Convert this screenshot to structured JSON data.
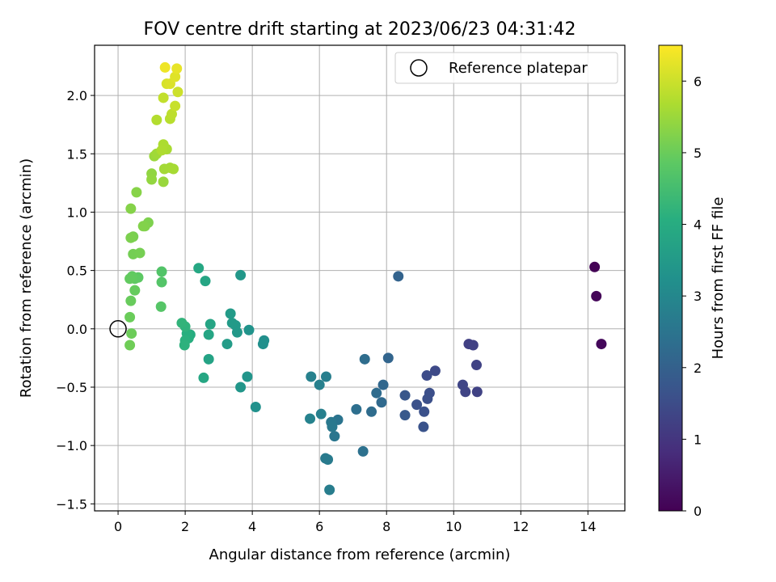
{
  "chart_data": {
    "type": "scatter",
    "title": "FOV centre drift starting at 2023/06/23 04:31:42",
    "xlabel": "Angular distance from reference (arcmin)",
    "ylabel": "Rotation from reference (arcmin)",
    "xlim": [
      -0.7,
      15.1
    ],
    "ylim": [
      -1.56,
      2.43
    ],
    "xticks": [
      0,
      2,
      4,
      6,
      8,
      10,
      12,
      14
    ],
    "yticks": [
      -1.5,
      -1.0,
      -0.5,
      0.0,
      0.5,
      1.0,
      1.5,
      2.0
    ],
    "xtick_labels": [
      "0",
      "2",
      "4",
      "6",
      "8",
      "10",
      "12",
      "14"
    ],
    "ytick_labels": [
      "−1.5",
      "−1.0",
      "−0.5",
      "0.0",
      "0.5",
      "1.0",
      "1.5",
      "2.0"
    ],
    "grid": true,
    "legend": {
      "position": "upper-right",
      "entries": [
        {
          "label": "Reference platepar",
          "marker": "open-circle"
        }
      ]
    },
    "reference_point": {
      "x": 0,
      "y": 0
    },
    "colorbar": {
      "label": "Hours from first FF file",
      "range": [
        0,
        6.5
      ],
      "ticks": [
        0,
        1,
        2,
        3,
        4,
        5,
        6
      ],
      "tick_labels": [
        "0",
        "1",
        "2",
        "3",
        "4",
        "5",
        "6"
      ],
      "colormap": "viridis"
    },
    "points": [
      [
        14.2,
        0.53,
        0.03
      ],
      [
        14.25,
        0.28,
        0.08
      ],
      [
        14.4,
        -0.13,
        0.12
      ],
      [
        10.45,
        -0.13,
        1.2
      ],
      [
        10.58,
        -0.14,
        1.25
      ],
      [
        10.68,
        -0.31,
        1.3
      ],
      [
        10.7,
        -0.54,
        1.28
      ],
      [
        10.35,
        -0.54,
        1.32
      ],
      [
        10.27,
        -0.48,
        1.35
      ],
      [
        9.45,
        -0.36,
        1.45
      ],
      [
        9.2,
        -0.4,
        1.5
      ],
      [
        9.28,
        -0.55,
        1.55
      ],
      [
        9.22,
        -0.6,
        1.58
      ],
      [
        9.12,
        -0.71,
        1.6
      ],
      [
        8.9,
        -0.65,
        1.62
      ],
      [
        9.1,
        -0.84,
        1.66
      ],
      [
        8.55,
        -0.57,
        1.75
      ],
      [
        8.55,
        -0.74,
        1.8
      ],
      [
        8.35,
        0.45,
        2.05
      ],
      [
        8.05,
        -0.25,
        2.1
      ],
      [
        7.9,
        -0.48,
        2.15
      ],
      [
        7.85,
        -0.63,
        2.2
      ],
      [
        7.7,
        -0.55,
        2.25
      ],
      [
        7.55,
        -0.71,
        2.28
      ],
      [
        7.35,
        -0.26,
        2.3
      ],
      [
        7.1,
        -0.69,
        2.35
      ],
      [
        7.3,
        -1.05,
        2.4
      ],
      [
        6.55,
        -0.78,
        2.5
      ],
      [
        6.45,
        -0.92,
        2.55
      ],
      [
        6.35,
        -0.8,
        2.6
      ],
      [
        6.38,
        -0.84,
        2.62
      ],
      [
        6.25,
        -1.12,
        2.68
      ],
      [
        6.18,
        -1.11,
        2.65
      ],
      [
        6.3,
        -1.38,
        2.72
      ],
      [
        6.2,
        -0.41,
        2.75
      ],
      [
        6.05,
        -0.73,
        2.78
      ],
      [
        6.0,
        -0.48,
        2.8
      ],
      [
        5.75,
        -0.41,
        2.82
      ],
      [
        5.72,
        -0.77,
        2.85
      ],
      [
        4.35,
        -0.1,
        3.2
      ],
      [
        4.32,
        -0.13,
        3.22
      ],
      [
        4.1,
        -0.67,
        3.25
      ],
      [
        3.9,
        -0.01,
        3.3
      ],
      [
        3.85,
        -0.41,
        3.35
      ],
      [
        3.65,
        -0.5,
        3.4
      ],
      [
        3.65,
        0.46,
        3.42
      ],
      [
        3.55,
        -0.03,
        3.45
      ],
      [
        3.5,
        0.03,
        3.48
      ],
      [
        3.4,
        0.05,
        3.5
      ],
      [
        3.35,
        0.13,
        3.52
      ],
      [
        3.25,
        -0.13,
        3.55
      ],
      [
        2.7,
        -0.26,
        3.75
      ],
      [
        2.75,
        0.04,
        3.78
      ],
      [
        2.7,
        -0.05,
        3.8
      ],
      [
        2.6,
        0.41,
        3.82
      ],
      [
        2.55,
        -0.42,
        3.85
      ],
      [
        2.4,
        0.52,
        3.88
      ],
      [
        2.15,
        -0.05,
        4.0
      ],
      [
        2.1,
        -0.08,
        4.05
      ],
      [
        2.05,
        -0.04,
        4.08
      ],
      [
        2.0,
        -0.1,
        4.12
      ],
      [
        1.98,
        -0.14,
        4.15
      ],
      [
        2.0,
        0.02,
        4.18
      ],
      [
        1.9,
        0.05,
        4.22
      ],
      [
        1.3,
        0.49,
        4.7
      ],
      [
        1.3,
        0.4,
        4.72
      ],
      [
        1.28,
        0.19,
        4.75
      ],
      [
        0.6,
        0.44,
        4.85
      ],
      [
        0.5,
        0.43,
        4.88
      ],
      [
        0.42,
        0.45,
        4.9
      ],
      [
        0.35,
        0.43,
        4.92
      ],
      [
        0.5,
        0.33,
        4.95
      ],
      [
        0.38,
        0.24,
        4.98
      ],
      [
        0.35,
        0.1,
        5.0
      ],
      [
        0.4,
        -0.04,
        5.02
      ],
      [
        0.35,
        -0.14,
        5.05
      ],
      [
        0.45,
        0.64,
        5.1
      ],
      [
        0.65,
        0.65,
        5.12
      ],
      [
        0.45,
        0.79,
        5.15
      ],
      [
        0.38,
        0.78,
        5.18
      ],
      [
        0.9,
        0.91,
        5.2
      ],
      [
        0.8,
        0.88,
        5.22
      ],
      [
        0.75,
        0.88,
        5.25
      ],
      [
        0.38,
        1.03,
        5.28
      ],
      [
        0.55,
        1.17,
        5.3
      ],
      [
        1.0,
        1.33,
        5.4
      ],
      [
        1.0,
        1.28,
        5.42
      ],
      [
        1.35,
        1.26,
        5.48
      ],
      [
        1.08,
        1.48,
        5.5
      ],
      [
        1.15,
        1.5,
        5.55
      ],
      [
        1.38,
        1.37,
        5.58
      ],
      [
        1.55,
        1.38,
        5.6
      ],
      [
        1.65,
        1.37,
        5.62
      ],
      [
        1.45,
        1.54,
        5.65
      ],
      [
        1.35,
        1.58,
        5.68
      ],
      [
        1.3,
        1.53,
        5.7
      ],
      [
        1.15,
        1.79,
        5.75
      ],
      [
        1.55,
        1.8,
        5.8
      ],
      [
        1.6,
        1.84,
        5.85
      ],
      [
        1.35,
        1.98,
        5.9
      ],
      [
        1.7,
        1.91,
        5.95
      ],
      [
        1.78,
        2.03,
        6.0
      ],
      [
        1.45,
        2.1,
        6.1
      ],
      [
        1.55,
        2.1,
        6.15
      ],
      [
        1.7,
        2.16,
        6.2
      ],
      [
        1.75,
        2.23,
        6.28
      ],
      [
        1.4,
        2.24,
        6.35
      ]
    ]
  }
}
